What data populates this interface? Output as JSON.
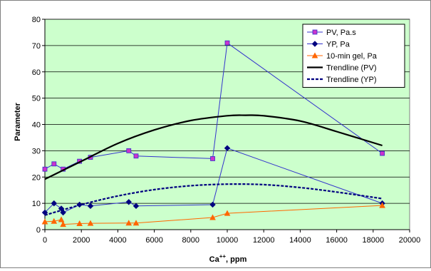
{
  "chart_data": {
    "type": "line",
    "title": "",
    "xlabel": "Ca",
    "xlabel_superscript": "++",
    "xlabel_suffix": ", ppm",
    "ylabel": "Parameter",
    "xlim": [
      0,
      20000
    ],
    "ylim": [
      0,
      80
    ],
    "x_ticks": [
      "0",
      "2000",
      "4000",
      "6000",
      "8000",
      "10000",
      "12000",
      "14000",
      "16000",
      "18000",
      "20000"
    ],
    "y_ticks": [
      "0",
      "10",
      "20",
      "30",
      "40",
      "50",
      "60",
      "70",
      "80"
    ],
    "grid": true,
    "legend_position": "top-right",
    "plot_background": "#ccffcc",
    "series": [
      {
        "name": "PV, Pa.s",
        "color": "#3333cc",
        "marker": "square",
        "marker_fill": "#cc33cc",
        "x": [
          0,
          500,
          1000,
          1900,
          2500,
          4600,
          5000,
          9200,
          10000,
          18500
        ],
        "y": [
          23,
          25,
          23,
          26,
          27.5,
          30,
          28,
          27,
          71,
          29
        ]
      },
      {
        "name": "YP, Pa",
        "color": "#3333cc",
        "marker": "diamond",
        "marker_fill": "#000080",
        "x": [
          0,
          500,
          900,
          1000,
          1900,
          2500,
          4600,
          5000,
          9200,
          10000,
          18500
        ],
        "y": [
          6.5,
          10,
          8,
          6.5,
          9.5,
          9,
          10.5,
          9,
          9.5,
          31,
          10
        ]
      },
      {
        "name": "10-min gel, Pa",
        "color": "#ff6600",
        "marker": "triangle",
        "marker_fill": "#ff6600",
        "x": [
          0,
          500,
          900,
          1000,
          1900,
          2500,
          4600,
          5000,
          9200,
          10000,
          18500
        ],
        "y": [
          3,
          3.2,
          3.8,
          2,
          2.3,
          2.4,
          2.5,
          2.5,
          4.6,
          6.2,
          9.2
        ]
      },
      {
        "name": "Trendline (PV)",
        "color": "#000000",
        "style": "solid",
        "x": [
          0,
          2000,
          4000,
          6000,
          8000,
          10000,
          11000,
          12000,
          14000,
          16000,
          18500
        ],
        "y": [
          19.2,
          26,
          32.8,
          37.9,
          41.5,
          43.3,
          43.5,
          43.3,
          41.3,
          37.3,
          32
        ]
      },
      {
        "name": "Trendline (YP)",
        "color": "#000080",
        "style": "dashed",
        "x": [
          0,
          2000,
          4000,
          6000,
          8000,
          10000,
          12000,
          14000,
          16000,
          18500
        ],
        "y": [
          5.5,
          9.5,
          12.8,
          15.2,
          16.7,
          17.3,
          17.1,
          16,
          14.3,
          11.8
        ]
      }
    ]
  }
}
